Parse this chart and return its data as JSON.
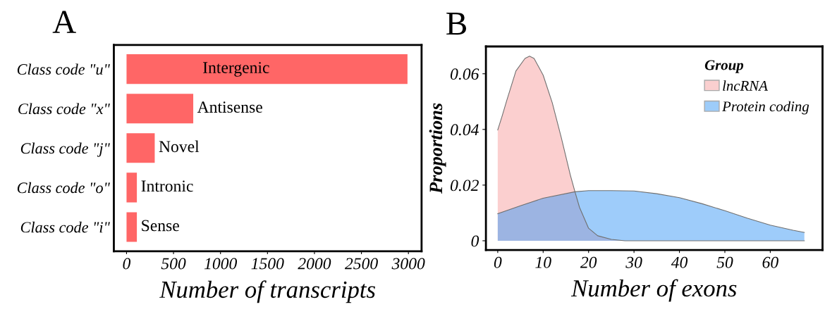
{
  "chart_data": [
    {
      "type": "bar",
      "title": "A",
      "orientation": "horizontal",
      "categories": [
        "Class code \"u\"",
        "Class code \"x\"",
        "Class code \"j\"",
        "Class code \"o\"",
        "Class code \"i\""
      ],
      "values": [
        2990,
        710,
        300,
        110,
        110
      ],
      "color": "#ff6666",
      "xlim": [
        -135,
        3140
      ],
      "xticks": [
        0,
        500,
        1000,
        1500,
        2000,
        2500,
        3000
      ],
      "xlabel": "Number of transcripts",
      "annotations": [
        "Intergenic",
        {
          "text": "Antisense",
          "x": 710,
          "y": "Class code \"x\""
        },
        {
          "text": "Novel",
          "x": 300,
          "y": "Class code \"j\""
        },
        {
          "text": "Intronic",
          "x": 110,
          "y": "Class code \"o\""
        },
        {
          "text": "Sense",
          "x": 110,
          "y": "Class code \"i\""
        }
      ]
    },
    {
      "type": "area",
      "title": "B",
      "series": [
        {
          "name": "lncRNA",
          "color": "#f7a0a0",
          "x": [
            0,
            1,
            2,
            4,
            6,
            7,
            8,
            10,
            12,
            14,
            16,
            17,
            18,
            20,
            22,
            25,
            28,
            35,
            45,
            55,
            67.5
          ],
          "values": [
            0.0398,
            0.045,
            0.0505,
            0.061,
            0.0655,
            0.0663,
            0.0655,
            0.0595,
            0.0496,
            0.037,
            0.0235,
            0.0176,
            0.012,
            0.0045,
            0.0018,
            0.0005,
            0,
            0,
            0,
            0,
            0
          ]
        },
        {
          "name": "Protein coding",
          "color": "#3d9af5",
          "x": [
            0,
            5,
            10,
            17,
            20,
            25,
            30,
            35,
            40,
            45,
            50,
            55,
            60,
            65,
            67.5
          ],
          "values": [
            0.0097,
            0.0126,
            0.0153,
            0.0176,
            0.018,
            0.018,
            0.0179,
            0.0169,
            0.0155,
            0.0133,
            0.0108,
            0.0081,
            0.0056,
            0.0038,
            0.003
          ]
        }
      ],
      "xlim": [
        -2.6,
        71.5
      ],
      "ylim": [
        -0.0033,
        0.0698
      ],
      "xticks": [
        0,
        10,
        20,
        30,
        40,
        50,
        60
      ],
      "yticks": [
        0,
        0.02,
        0.04,
        0.06
      ],
      "xlabel": "Number of exons",
      "ylabel": "Proportions",
      "legend": "top right",
      "legend_title": "Group"
    }
  ]
}
